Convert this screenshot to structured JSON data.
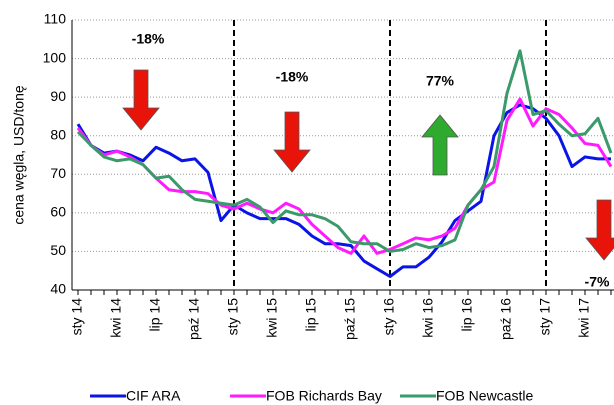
{
  "chart_data": {
    "type": "line",
    "y_label": "cena węgla, USD/tonę",
    "categories": [
      "sty 14",
      null,
      null,
      "kwi 14",
      null,
      null,
      "lip 14",
      null,
      null,
      "paź 14",
      null,
      null,
      "sty 15",
      null,
      null,
      "kwi 15",
      null,
      null,
      "lip 15",
      null,
      null,
      "paź 15",
      null,
      null,
      "sty 16",
      null,
      null,
      "kwi 16",
      null,
      null,
      "lip 16",
      null,
      null,
      "paź 16",
      null,
      null,
      "sty 17",
      null,
      null,
      "kwi 17",
      null,
      null
    ],
    "series": [
      {
        "name": "CIF ARA",
        "color": "#0a14e6",
        "values": [
          83,
          77.5,
          75.5,
          76,
          75,
          73.5,
          77,
          75.5,
          73.5,
          74,
          70.5,
          58,
          62,
          60,
          58.5,
          58.5,
          58.5,
          57,
          54,
          52,
          52,
          51.5,
          47.5,
          45.5,
          43.5,
          46,
          46,
          48.5,
          52.5,
          58,
          60.5,
          63,
          80,
          86,
          88,
          87,
          84.5,
          80,
          72,
          74.5,
          74,
          74
        ]
      },
      {
        "name": "FOB Richards Bay",
        "color": "#ff1aff",
        "values": [
          82,
          77.5,
          75,
          76,
          74.5,
          72.5,
          69,
          66,
          65.5,
          65.5,
          65,
          62,
          61,
          62.5,
          61,
          60,
          62.5,
          61,
          57,
          54,
          51,
          49.5,
          54,
          49.5,
          50.5,
          52,
          53.5,
          53,
          54,
          56,
          62,
          66,
          68,
          84,
          89.5,
          82.5,
          87,
          85.5,
          82,
          78,
          77.5,
          72
        ]
      },
      {
        "name": "FOB Newcastle",
        "color": "#3a9a6a",
        "values": [
          81,
          77.5,
          74.5,
          73.5,
          74,
          72.5,
          69,
          69.5,
          66,
          63.5,
          63,
          62.5,
          62,
          63.5,
          61.5,
          57.5,
          60.5,
          59.5,
          59.5,
          58.5,
          56.5,
          52.5,
          52,
          52,
          50,
          50.5,
          52,
          51,
          51.5,
          53,
          62,
          66,
          72,
          91,
          102,
          85.5,
          86.5,
          83,
          80,
          80.5,
          84.5,
          75.5
        ]
      }
    ],
    "ylim": [
      40,
      110
    ],
    "yticks": [
      40,
      50,
      60,
      70,
      80,
      90,
      100,
      110
    ],
    "grid": true,
    "dividers": [
      12,
      24,
      36
    ],
    "annotations": [
      {
        "text": "-18%",
        "direction": "down",
        "color": "#e8140a"
      },
      {
        "text": "-18%",
        "direction": "down",
        "color": "#e8140a"
      },
      {
        "text": "77%",
        "direction": "up",
        "color": "#2eaa2e"
      },
      {
        "text": "-7%",
        "direction": "down",
        "color": "#e8140a"
      }
    ]
  }
}
